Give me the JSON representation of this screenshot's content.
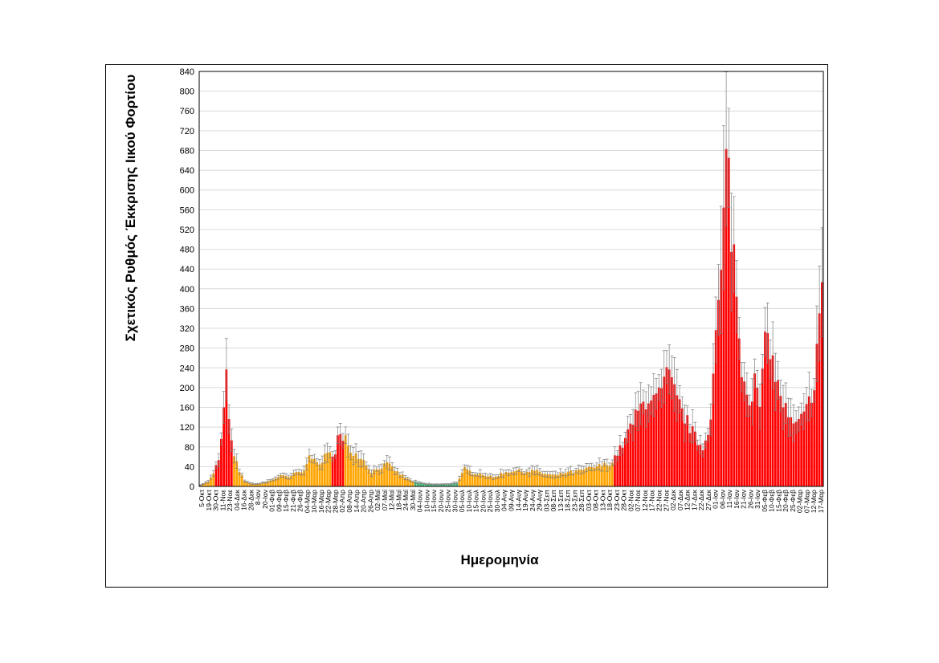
{
  "chart_data": {
    "type": "bar",
    "title": "",
    "xlabel": "Ημερομηνία",
    "ylabel": "Σχετικός Ρυθμός Έκκρισης Ιικού Φορτίου",
    "ylim": [
      0,
      840
    ],
    "yticks": [
      0,
      40,
      80,
      120,
      160,
      200,
      240,
      280,
      320,
      360,
      400,
      440,
      480,
      520,
      560,
      600,
      640,
      680,
      720,
      760,
      800,
      840
    ],
    "grid": "horizontal",
    "error_bars": true,
    "colors": {
      "low": "#3cb371",
      "medium": "#ffa500",
      "high": "#ff0000",
      "errorbar": "#808080",
      "grid": "#d9d9d9"
    },
    "x_tick_labels": [
      "5-Οκτ",
      "19-Οκτ",
      "30-Οκτ",
      "11-Νοε",
      "23-Νοε",
      "04-Δεκ",
      "16-Δεκ",
      "28-Δεκ",
      "8-Ιαν",
      "20-Ιαν",
      "01-Φεβ",
      "09-Φεβ",
      "15-Φεβ",
      "21-Φεβ",
      "26-Φεβ",
      "04-Μαρ",
      "10-Μαρ",
      "16-Μαρ",
      "22-Μαρ",
      "28-Μαρ",
      "02-Απρ",
      "08-Απρ",
      "14-Απρ",
      "20-Απρ",
      "26-Απρ",
      "02-Μαϊ",
      "07-Μαϊ",
      "12-Μαϊ",
      "18-Μαϊ",
      "24-Μαϊ",
      "30-Μαϊ",
      "04-Ιουν",
      "10-Ιουν",
      "15-Ιουν",
      "20-Ιουν",
      "25-Ιουν",
      "30-Ιουν",
      "05-Ιουλ",
      "10-Ιουλ",
      "15-Ιουλ",
      "20-Ιουλ",
      "25-Ιουλ",
      "30-Ιουλ",
      "04-Αυγ",
      "09-Αυγ",
      "14-Αυγ",
      "19-Αυγ",
      "24-Αυγ",
      "29-Αυγ",
      "03-Σεπ",
      "08-Σεπ",
      "13-Σεπ",
      "18-Σεπ",
      "23-Σεπ",
      "28-Σεπ",
      "03-Οκτ",
      "08-Οκτ",
      "13-Οκτ",
      "18-Οκτ",
      "23-Οκτ",
      "28-Οκτ",
      "02-Νοε",
      "07-Νοε",
      "12-Νοε",
      "17-Νοε",
      "22-Νοε",
      "27-Νοε",
      "02-Δεκ",
      "07-Δεκ",
      "12-Δεκ",
      "17-Δεκ",
      "22-Δεκ",
      "27-Δεκ",
      "01-Ιαν",
      "06-Ιαν",
      "11-Ιαν",
      "16-Ιαν",
      "21-Ιαν",
      "26-Ιαν",
      "31-Ιαν",
      "05-Φεβ",
      "10-Φεβ",
      "15-Φεβ",
      "20-Φεβ",
      "25-Φεβ",
      "02-Μαρ",
      "07-Μαρ",
      "12-Μαρ",
      "17-Μαρ"
    ],
    "profile": [
      {
        "pos": 0,
        "value": 3,
        "color": "medium"
      },
      {
        "pos": 3,
        "value": 10,
        "color": "medium"
      },
      {
        "pos": 5,
        "value": 25,
        "color": "medium"
      },
      {
        "pos": 7,
        "value": 55,
        "color": "high"
      },
      {
        "pos": 8.5,
        "value": 110,
        "color": "high"
      },
      {
        "pos": 9.6,
        "value": 205,
        "color": "high"
      },
      {
        "pos": 10.2,
        "value": 220,
        "color": "high"
      },
      {
        "pos": 11,
        "value": 150,
        "color": "high"
      },
      {
        "pos": 12.3,
        "value": 65,
        "color": "high"
      },
      {
        "pos": 13.5,
        "value": 55,
        "color": "medium"
      },
      {
        "pos": 15,
        "value": 30,
        "color": "medium"
      },
      {
        "pos": 17,
        "value": 12,
        "color": "medium"
      },
      {
        "pos": 19,
        "value": 6,
        "color": "medium"
      },
      {
        "pos": 22,
        "value": 5,
        "color": "medium"
      },
      {
        "pos": 25,
        "value": 8,
        "color": "medium"
      },
      {
        "pos": 28,
        "value": 14,
        "color": "medium"
      },
      {
        "pos": 31,
        "value": 22,
        "color": "medium"
      },
      {
        "pos": 34,
        "value": 18,
        "color": "medium"
      },
      {
        "pos": 37,
        "value": 28,
        "color": "medium"
      },
      {
        "pos": 40,
        "value": 30,
        "color": "medium"
      },
      {
        "pos": 42,
        "value": 70,
        "color": "medium"
      },
      {
        "pos": 44,
        "value": 50,
        "color": "medium"
      },
      {
        "pos": 46,
        "value": 45,
        "color": "medium"
      },
      {
        "pos": 48,
        "value": 60,
        "color": "medium"
      },
      {
        "pos": 50,
        "value": 65,
        "color": "medium"
      },
      {
        "pos": 52,
        "value": 72,
        "color": "high"
      },
      {
        "pos": 53.5,
        "value": 115,
        "color": "high"
      },
      {
        "pos": 54.5,
        "value": 85,
        "color": "high"
      },
      {
        "pos": 56,
        "value": 95,
        "color": "medium"
      },
      {
        "pos": 58,
        "value": 75,
        "color": "medium"
      },
      {
        "pos": 60,
        "value": 65,
        "color": "medium"
      },
      {
        "pos": 62,
        "value": 60,
        "color": "medium"
      },
      {
        "pos": 64,
        "value": 45,
        "color": "medium"
      },
      {
        "pos": 66,
        "value": 30,
        "color": "medium"
      },
      {
        "pos": 68,
        "value": 35,
        "color": "medium"
      },
      {
        "pos": 70,
        "value": 40,
        "color": "medium"
      },
      {
        "pos": 72,
        "value": 45,
        "color": "medium"
      },
      {
        "pos": 74,
        "value": 38,
        "color": "medium"
      },
      {
        "pos": 76,
        "value": 28,
        "color": "medium"
      },
      {
        "pos": 78,
        "value": 22,
        "color": "medium"
      },
      {
        "pos": 80,
        "value": 15,
        "color": "medium"
      },
      {
        "pos": 82,
        "value": 10,
        "color": "medium"
      },
      {
        "pos": 83.5,
        "value": 8,
        "color": "low"
      },
      {
        "pos": 87,
        "value": 5,
        "color": "low"
      },
      {
        "pos": 92,
        "value": 4,
        "color": "low"
      },
      {
        "pos": 96,
        "value": 5,
        "color": "low"
      },
      {
        "pos": 99,
        "value": 8,
        "color": "low"
      },
      {
        "pos": 100,
        "value": 15,
        "color": "medium"
      },
      {
        "pos": 102,
        "value": 35,
        "color": "medium"
      },
      {
        "pos": 105,
        "value": 28,
        "color": "medium"
      },
      {
        "pos": 109,
        "value": 25,
        "color": "medium"
      },
      {
        "pos": 113,
        "value": 18,
        "color": "medium"
      },
      {
        "pos": 117,
        "value": 28,
        "color": "medium"
      },
      {
        "pos": 121,
        "value": 32,
        "color": "medium"
      },
      {
        "pos": 125,
        "value": 30,
        "color": "medium"
      },
      {
        "pos": 129,
        "value": 32,
        "color": "medium"
      },
      {
        "pos": 133,
        "value": 25,
        "color": "medium"
      },
      {
        "pos": 137,
        "value": 22,
        "color": "medium"
      },
      {
        "pos": 141,
        "value": 28,
        "color": "medium"
      },
      {
        "pos": 145,
        "value": 30,
        "color": "medium"
      },
      {
        "pos": 149,
        "value": 35,
        "color": "medium"
      },
      {
        "pos": 153,
        "value": 40,
        "color": "medium"
      },
      {
        "pos": 157,
        "value": 45,
        "color": "medium"
      },
      {
        "pos": 159.5,
        "value": 50,
        "color": "medium"
      },
      {
        "pos": 160,
        "value": 60,
        "color": "high"
      },
      {
        "pos": 162,
        "value": 75,
        "color": "high"
      },
      {
        "pos": 164,
        "value": 95,
        "color": "high"
      },
      {
        "pos": 166,
        "value": 120,
        "color": "high"
      },
      {
        "pos": 168,
        "value": 140,
        "color": "high"
      },
      {
        "pos": 170,
        "value": 160,
        "color": "high"
      },
      {
        "pos": 172,
        "value": 175,
        "color": "high"
      },
      {
        "pos": 174,
        "value": 185,
        "color": "high"
      },
      {
        "pos": 176,
        "value": 175,
        "color": "high"
      },
      {
        "pos": 178,
        "value": 190,
        "color": "high"
      },
      {
        "pos": 180,
        "value": 225,
        "color": "high"
      },
      {
        "pos": 182,
        "value": 205,
        "color": "high"
      },
      {
        "pos": 184,
        "value": 175,
        "color": "high"
      },
      {
        "pos": 186,
        "value": 150,
        "color": "high"
      },
      {
        "pos": 188,
        "value": 130,
        "color": "high"
      },
      {
        "pos": 190,
        "value": 110,
        "color": "high"
      },
      {
        "pos": 192,
        "value": 90,
        "color": "high"
      },
      {
        "pos": 194,
        "value": 80,
        "color": "high"
      },
      {
        "pos": 195.5,
        "value": 100,
        "color": "high"
      },
      {
        "pos": 197,
        "value": 150,
        "color": "high"
      },
      {
        "pos": 198.5,
        "value": 270,
        "color": "high"
      },
      {
        "pos": 200,
        "value": 360,
        "color": "high"
      },
      {
        "pos": 201.5,
        "value": 460,
        "color": "high"
      },
      {
        "pos": 202.5,
        "value": 600,
        "color": "high"
      },
      {
        "pos": 203.5,
        "value": 700,
        "color": "high"
      },
      {
        "pos": 204.5,
        "value": 540,
        "color": "high"
      },
      {
        "pos": 205.5,
        "value": 520,
        "color": "high"
      },
      {
        "pos": 207,
        "value": 380,
        "color": "high"
      },
      {
        "pos": 208.5,
        "value": 260,
        "color": "high"
      },
      {
        "pos": 210,
        "value": 220,
        "color": "high"
      },
      {
        "pos": 212,
        "value": 180,
        "color": "high"
      },
      {
        "pos": 214,
        "value": 210,
        "color": "high"
      },
      {
        "pos": 216,
        "value": 165,
        "color": "high"
      },
      {
        "pos": 218,
        "value": 280,
        "color": "high"
      },
      {
        "pos": 219.5,
        "value": 310,
        "color": "high"
      },
      {
        "pos": 221,
        "value": 250,
        "color": "high"
      },
      {
        "pos": 223,
        "value": 200,
        "color": "high"
      },
      {
        "pos": 225,
        "value": 170,
        "color": "high"
      },
      {
        "pos": 227,
        "value": 140,
        "color": "high"
      },
      {
        "pos": 229,
        "value": 120,
        "color": "high"
      },
      {
        "pos": 231,
        "value": 130,
        "color": "high"
      },
      {
        "pos": 233,
        "value": 140,
        "color": "high"
      },
      {
        "pos": 235,
        "value": 170,
        "color": "high"
      },
      {
        "pos": 237,
        "value": 210,
        "color": "high"
      },
      {
        "pos": 238.5,
        "value": 320,
        "color": "high"
      },
      {
        "pos": 240,
        "value": 380,
        "color": "high"
      }
    ]
  }
}
